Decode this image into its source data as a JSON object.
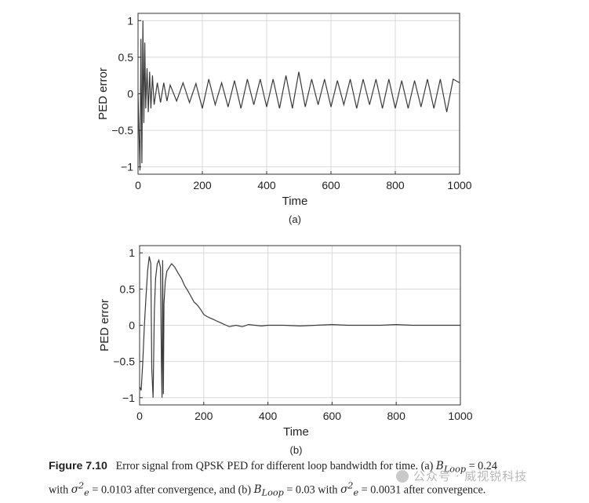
{
  "chart_data": [
    {
      "type": "line",
      "panel_label": "(a)",
      "xlabel": "Time",
      "ylabel": "PED error",
      "xlim": [
        0,
        1000
      ],
      "ylim": [
        -1.1,
        1.1
      ],
      "xticks": [
        0,
        200,
        400,
        600,
        800,
        1000
      ],
      "yticks": [
        -1,
        -0.5,
        0,
        0.5,
        1
      ],
      "ytick_labels": [
        "−1",
        "−0.5",
        "0",
        "0.5",
        "1"
      ],
      "grid": true,
      "series": [
        {
          "color": "#3a3a3a",
          "x": [
            0,
            3,
            6,
            9,
            12,
            15,
            18,
            21,
            24,
            28,
            32,
            36,
            40,
            45,
            50,
            60,
            70,
            80,
            90,
            100,
            120,
            140,
            160,
            180,
            200,
            220,
            240,
            260,
            280,
            300,
            320,
            340,
            360,
            380,
            400,
            420,
            440,
            460,
            480,
            500,
            520,
            540,
            560,
            580,
            600,
            620,
            640,
            660,
            680,
            700,
            720,
            740,
            760,
            780,
            800,
            820,
            840,
            860,
            880,
            900,
            920,
            940,
            960,
            980,
            1000
          ],
          "y": [
            0,
            -0.5,
            -1.05,
            0.75,
            -0.95,
            1.0,
            -0.4,
            0.7,
            -0.2,
            0.35,
            -0.25,
            0.3,
            -0.2,
            0.25,
            -0.15,
            0.15,
            -0.12,
            0.15,
            -0.1,
            0.12,
            -0.1,
            0.15,
            -0.12,
            0.14,
            -0.2,
            0.2,
            -0.15,
            0.15,
            -0.18,
            0.18,
            -0.2,
            0.2,
            -0.15,
            0.2,
            -0.18,
            0.2,
            -0.2,
            0.25,
            -0.2,
            0.3,
            -0.18,
            0.2,
            -0.15,
            0.2,
            -0.18,
            0.18,
            -0.15,
            0.2,
            -0.2,
            0.2,
            -0.15,
            0.2,
            -0.2,
            0.2,
            -0.2,
            0.18,
            -0.2,
            0.18,
            -0.18,
            0.2,
            -0.2,
            0.2,
            -0.25,
            0.2,
            0.15
          ]
        }
      ]
    },
    {
      "type": "line",
      "panel_label": "(b)",
      "xlabel": "Time",
      "ylabel": "PED error",
      "xlim": [
        0,
        1000
      ],
      "ylim": [
        -1.1,
        1.1
      ],
      "xticks": [
        0,
        200,
        400,
        600,
        800,
        1000
      ],
      "yticks": [
        -1,
        -0.5,
        0,
        0.5,
        1
      ],
      "ytick_labels": [
        "−1",
        "−0.5",
        "0",
        "0.5",
        "1"
      ],
      "grid": true,
      "series": [
        {
          "color": "#3a3a3a",
          "x": [
            0,
            5,
            10,
            15,
            20,
            25,
            30,
            35,
            38,
            42,
            46,
            50,
            55,
            60,
            65,
            68,
            70,
            72,
            74,
            76,
            80,
            85,
            90,
            95,
            100,
            110,
            120,
            130,
            140,
            150,
            160,
            170,
            180,
            190,
            200,
            210,
            220,
            230,
            240,
            250,
            260,
            270,
            280,
            300,
            320,
            340,
            360,
            380,
            400,
            450,
            500,
            550,
            600,
            650,
            700,
            750,
            800,
            850,
            900,
            950,
            1000
          ],
          "y": [
            -0.85,
            -0.9,
            -0.5,
            0.0,
            0.4,
            0.75,
            0.95,
            0.85,
            -0.6,
            -1.0,
            0.2,
            0.65,
            0.85,
            0.9,
            0.8,
            -0.5,
            -1.0,
            0.9,
            -0.95,
            0.3,
            0.6,
            0.75,
            0.78,
            0.82,
            0.85,
            0.8,
            0.72,
            0.65,
            0.55,
            0.48,
            0.4,
            0.32,
            0.28,
            0.22,
            0.15,
            0.12,
            0.1,
            0.08,
            0.06,
            0.04,
            0.02,
            0.0,
            -0.02,
            0.0,
            -0.02,
            0.01,
            0.0,
            -0.01,
            0.0,
            0.0,
            -0.01,
            0.0,
            0.01,
            0.0,
            0.0,
            0.0,
            0.01,
            0.0,
            0.0,
            0.0,
            0.0
          ]
        }
      ]
    }
  ],
  "caption": {
    "label": "Figure 7.10",
    "line1_text": "Error signal from QPSK PED for different loop bandwidth for time. (a) ",
    "b_loop_a": "B",
    "b_loop_sub": "Loop",
    "eq_a": " = 0.24",
    "line2_prefix": "with ",
    "sigma_a": "σ",
    "sigma_sub": "e",
    "sigma_sup": "2",
    "eq_sigma_a": " = 0.0103 after convergence, and (b) ",
    "eq_b": " = 0.03 with ",
    "eq_sigma_b": " = 0.0031 after convergence."
  },
  "watermark": "公众号 · 威视锐科技"
}
